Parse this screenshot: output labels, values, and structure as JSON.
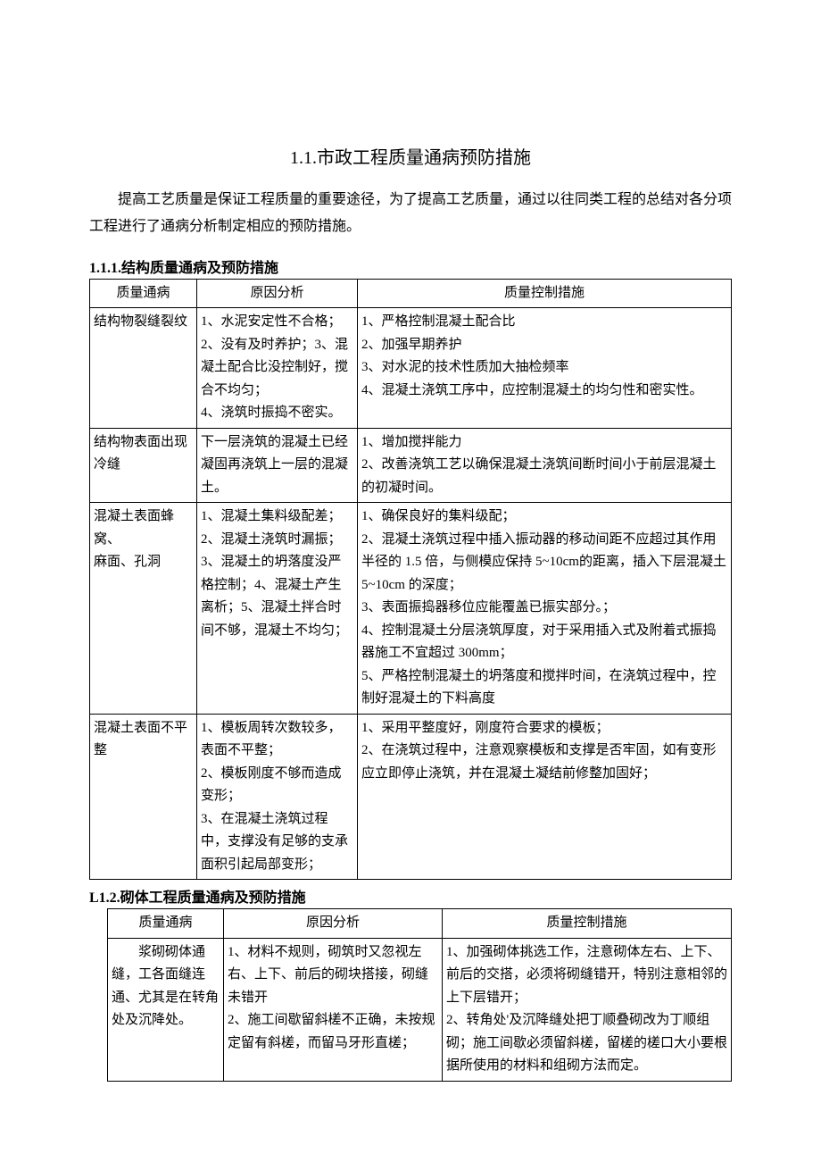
{
  "title": "1.1.市政工程质量通病预防措施",
  "intro": "提高工艺质量是保证工程质量的重要途径，为了提高工艺质量，通过以往同类工程的总结对各分项工程进行了通病分析制定相应的预防措施。",
  "section1": {
    "heading": "1.1.1.结构质量通病及预防措施",
    "columns": [
      "质量通病",
      "原因分析",
      "质量控制措施"
    ],
    "rows": [
      {
        "defect": "结构物裂缝裂纹",
        "cause": "1、水泥安定性不合格；2、没有及时养护；3、混凝土配合比没控制好，搅合不均匀；\n4、浇筑时振捣不密实。",
        "measure": "1、严格控制混凝土配合比\n2、加强早期养护\n3、对水泥的技术性质加大抽检频率\n4、混凝土浇筑工序中，应控制混凝土的均匀性和密实性。"
      },
      {
        "defect": "结构物表面出现冷缝",
        "cause": "下一层浇筑的混凝土已经凝固再浇筑上一层的混凝土。",
        "measure": "1、增加搅拌能力\n2、改善浇筑工艺以确保混凝土浇筑间断时间小于前层混凝土的初凝时间。"
      },
      {
        "defect": "混凝土表面蜂窝、\n麻面、孔洞",
        "cause": "1、混凝土集料级配差；2、混凝土浇筑时漏振；3、混凝土的坍落度没严格控制；4、混凝土产生离析；5、混凝土拌合时间不够，混凝土不均匀；",
        "measure": "1、确保良好的集料级配；\n2、混凝土浇筑过程中插入振动器的移动间距不应超过其作用半径的 1.5 倍，与侧模应保持 5~10cm的距离，插入下层混凝土 5~10cm 的深度；\n3、表面振捣器移位应能覆盖已振实部分。；\n4、控制混凝土分层浇筑厚度，对于采用插入式及附着式振捣器施工不宜超过 300mm；\n5、严格控制混凝土的坍落度和搅拌时间，在浇筑过程中，控制好混凝土的下料高度"
      },
      {
        "defect": "混凝土表面不平整",
        "cause": "1、模板周转次数较多，表面不平整；\n2、模板刚度不够而造成变形；\n3、在混凝土浇筑过程中，支撑没有足够的支承面积引起局部变形；",
        "measure": "1、采用平整度好，刚度符合要求的模板；\n2、在浇筑过程中，注意观察模板和支撑是否牢固，如有变形应立即停止浇筑，并在混凝土凝结前修整加固好；"
      }
    ]
  },
  "section2": {
    "heading": "L1.2.砌体工程质量通病及预防措施",
    "columns": [
      "质量通病",
      "原因分析",
      "质量控制措施"
    ],
    "rows": [
      {
        "defect": "　　浆砌砌体通缝，工各面缝连通、尤其是在转角处及沉降处。",
        "cause": "1、材料不规则，砌筑时又忽视左右、上下、前后的砌块搭接，砌缝未错开\n2、施工间歇留斜槎不正确，未按规定留有斜槎，而留马牙形直槎；",
        "measure": "1、加强砌体挑选工作，注意砌体左右、上下、前后的交搭，必须将砌缝错开，特别注意相邻的上下层错开；\n2、转角处'及沉降缝处把丁顺叠砌改为丁顺组砌；施工间歇必须留斜槎，留槎的槎口大小要根据所使用的材料和组砌方法而定。"
      }
    ]
  }
}
